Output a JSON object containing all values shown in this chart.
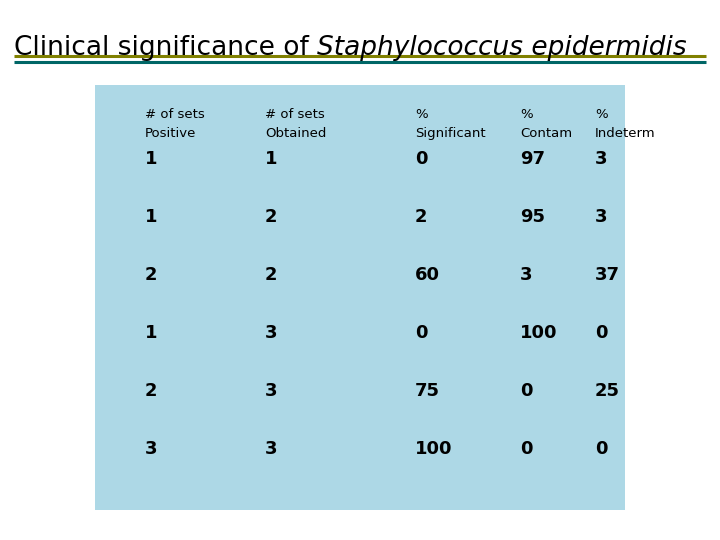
{
  "title_plain": "Clinical significance of ",
  "title_italic": "Staphylococcus epidermidis",
  "bg_color": "#ffffff",
  "table_bg": "#add8e6",
  "line_color1": "#808000",
  "line_color2": "#006666",
  "col_headers_line1": [
    "# of sets",
    "# of sets",
    "%",
    "%",
    "%"
  ],
  "col_headers_line2": [
    "Positive",
    "Obtained",
    "Significant",
    "Contam",
    "Indeterm"
  ],
  "rows": [
    [
      "1",
      "1",
      "0",
      "97",
      "3"
    ],
    [
      "1",
      "2",
      "2",
      "95",
      "3"
    ],
    [
      "2",
      "2",
      "60",
      "3",
      "37"
    ],
    [
      "1",
      "3",
      "0",
      "100",
      "0"
    ],
    [
      "2",
      "3",
      "75",
      "0",
      "25"
    ],
    [
      "3",
      "3",
      "100",
      "0",
      "0"
    ]
  ],
  "title_fontsize": 19,
  "header1_fontsize": 9.5,
  "header2_fontsize": 9.5,
  "data_fontsize": 13
}
